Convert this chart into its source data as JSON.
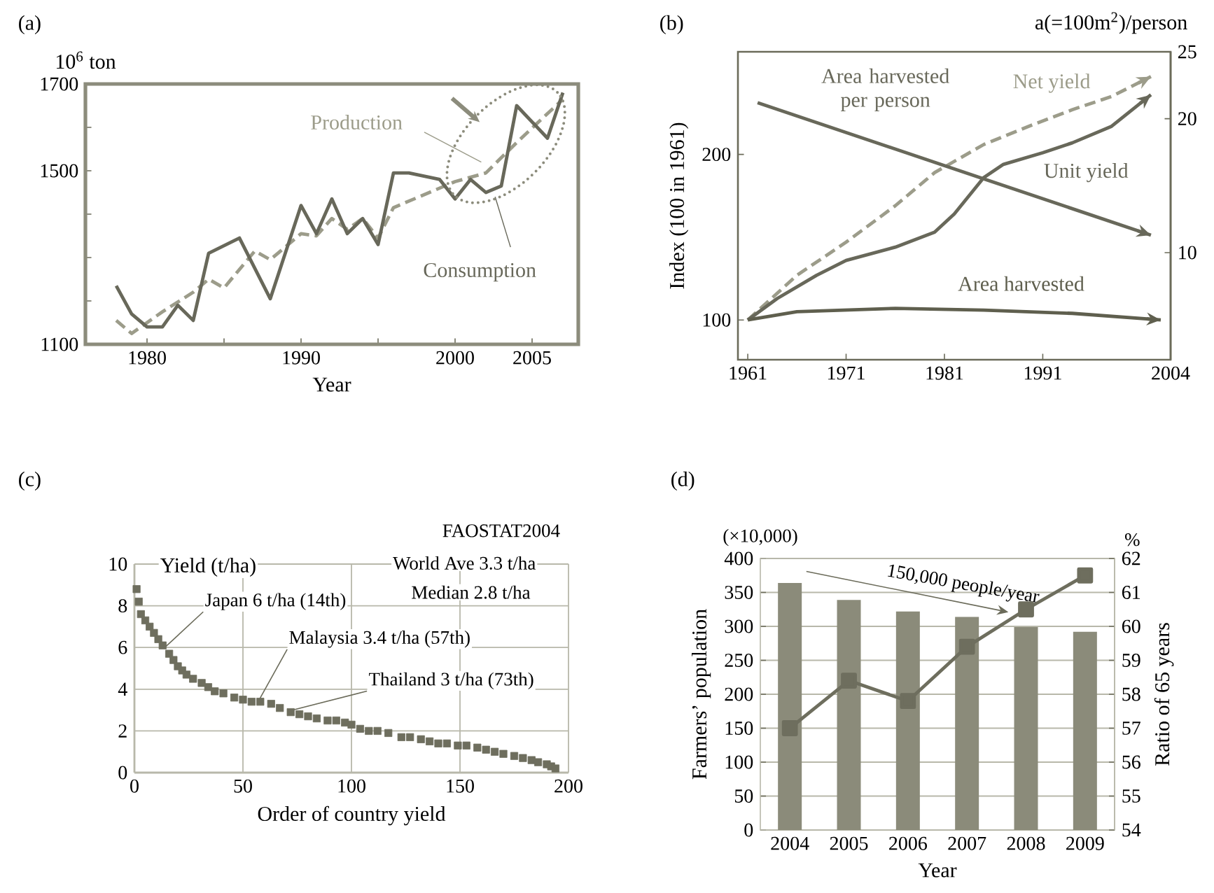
{
  "chart_data": [
    {
      "type": "line",
      "title": "(a)",
      "xlabel": "Year",
      "ylabel": "10$^{6}$ ton",
      "xlim": [
        1976,
        2008
      ],
      "xticks": [
        1980,
        {
          "value": 1985,
          "label": null
        },
        1990,
        {
          "value": 1995,
          "label": null
        },
        2000,
        2005
      ],
      "ylim": [
        1100,
        1700
      ],
      "yticks": [
        1100,
        {
          "value": 1200,
          "label": null
        },
        {
          "value": 1300,
          "label": null
        },
        {
          "value": 1400,
          "label": null
        },
        1500,
        {
          "value": 1600,
          "label": null
        },
        1700
      ],
      "series": [
        {
          "name": "Production",
          "color": "#9c9c8a",
          "line_style": "dashed",
          "x": [
            1978,
            1979,
            1981,
            1983,
            1984,
            1985,
            1987,
            1988,
            1990,
            1991,
            1992,
            1993,
            1994,
            1995,
            1996,
            2000,
            2002,
            2004,
            2007
          ],
          "values": [
            1155,
            1125,
            1175,
            1220,
            1250,
            1230,
            1315,
            1295,
            1355,
            1350,
            1390,
            1365,
            1390,
            1345,
            1415,
            1475,
            1495,
            1565,
            1665
          ]
        },
        {
          "name": "Consumption",
          "color": "#68685a",
          "line_style": "solid",
          "x": [
            1978,
            1979,
            1980,
            1981,
            1982,
            1983,
            1984,
            1986,
            1988,
            1990,
            1991,
            1992,
            1993,
            1994,
            1995,
            1996,
            1997,
            1999,
            2000,
            2001,
            2002,
            2003,
            2004,
            2006,
            2007
          ],
          "values": [
            1235,
            1170,
            1140,
            1140,
            1190,
            1155,
            1310,
            1345,
            1205,
            1420,
            1355,
            1435,
            1355,
            1390,
            1330,
            1495,
            1495,
            1480,
            1435,
            1480,
            1450,
            1465,
            1650,
            1575,
            1680
          ]
        }
      ]
    },
    {
      "type": "line",
      "title": "(b)",
      "ylabel": "Index (100 in 1961)",
      "y2label": "a(=100m$^{2}$)/person",
      "xlim": [
        1960,
        2004
      ],
      "xticks": [
        1961,
        1971,
        1981,
        1991,
        2004
      ],
      "ylim": [
        76,
        262
      ],
      "yticks": [
        100,
        200
      ],
      "y2lim": [
        2,
        25
      ],
      "y2ticks": [
        10,
        20,
        25
      ],
      "series": [
        {
          "name": "Area harvested per person",
          "color": "#68685a",
          "axis": "y2",
          "line_style": "solid",
          "x": [
            1962,
            2002
          ],
          "values": [
            21.2,
            11.3
          ]
        },
        {
          "name": "Net yield",
          "color": "#9c9c8a",
          "line_style": "dashed",
          "x": [
            1961,
            1966,
            1971,
            1976,
            1980,
            1985,
            1990,
            1994,
            1998,
            2002
          ],
          "values": [
            100,
            127,
            147,
            169,
            189,
            206,
            218,
            227,
            235,
            247
          ]
        },
        {
          "name": "Unit yield",
          "color": "#68685a",
          "line_style": "solid",
          "x": [
            1961,
            1964,
            1968,
            1971,
            1976,
            1980,
            1982,
            1985,
            1987,
            1991,
            1994,
            1998,
            2002
          ],
          "values": [
            100,
            113,
            127,
            136,
            144,
            153,
            164,
            186,
            194,
            201,
            207,
            217,
            236
          ]
        },
        {
          "name": "Area harvested",
          "color": "#5f5f4e",
          "line_style": "solid",
          "x": [
            1961,
            1966,
            1976,
            1985,
            1994,
            2003
          ],
          "values": [
            100,
            105,
            107,
            106,
            104,
            100
          ]
        }
      ]
    },
    {
      "type": "scatter",
      "title": "(c)",
      "xlabel": "Order of country yield",
      "ylabel": "Yield (t/ha)",
      "xlim": [
        0,
        200
      ],
      "xticks": [
        0,
        50,
        100,
        150,
        200
      ],
      "ylim": [
        0,
        10
      ],
      "yticks": [
        0,
        2,
        4,
        6,
        8,
        10
      ],
      "grid": true,
      "annotations": [
        "FAOSTAT2004",
        "World Ave 3.3 t/ha",
        "Median 2.8 t/ha",
        {
          "text": "Japan 6 t/ha (14th)",
          "x": 14,
          "y": 6
        },
        {
          "text": "Malaysia 3.4 t/ha (57th)",
          "x": 57,
          "y": 3.4
        },
        {
          "text": "Thailand 3 t/ha (73th)",
          "x": 73,
          "y": 3
        }
      ],
      "series": [
        {
          "color": "#6e6e5e",
          "marker": "square",
          "x": [
            1,
            2,
            3,
            5,
            7,
            9,
            11,
            13,
            16,
            18,
            20,
            22,
            24,
            27,
            31,
            34,
            37,
            41,
            46,
            50,
            54,
            58,
            63,
            67,
            72,
            76,
            80,
            84,
            89,
            93,
            97,
            100,
            104,
            108,
            112,
            117,
            123,
            127,
            132,
            136,
            140,
            144,
            149,
            153,
            158,
            162,
            166,
            170,
            175,
            179,
            183,
            186,
            190,
            192,
            194
          ],
          "values": [
            8.8,
            8.2,
            7.6,
            7.3,
            7.0,
            6.7,
            6.4,
            6.1,
            5.7,
            5.4,
            5.1,
            4.9,
            4.7,
            4.5,
            4.3,
            4.1,
            3.9,
            3.8,
            3.6,
            3.5,
            3.4,
            3.4,
            3.3,
            3.1,
            2.9,
            2.8,
            2.7,
            2.6,
            2.5,
            2.5,
            2.4,
            2.3,
            2.1,
            2.0,
            2.0,
            1.9,
            1.7,
            1.7,
            1.6,
            1.5,
            1.4,
            1.4,
            1.3,
            1.3,
            1.2,
            1.1,
            1.0,
            0.9,
            0.8,
            0.7,
            0.6,
            0.5,
            0.4,
            0.3,
            0.2
          ]
        }
      ]
    },
    {
      "type": "bar",
      "title": "(d)",
      "xlabel": "Year",
      "ylabel": "Farmers’ population",
      "y2label": "Ratio of 65 years",
      "categories": [
        "2004",
        "2005",
        "2006",
        "2007",
        "2008",
        "2009"
      ],
      "ylim": [
        0,
        400
      ],
      "yticks": [
        0,
        50,
        100,
        150,
        200,
        250,
        300,
        350,
        400
      ],
      "y2lim": [
        54,
        62
      ],
      "y2ticks": [
        54,
        55,
        56,
        57,
        58,
        59,
        60,
        61,
        62
      ],
      "grid": "y",
      "annotations": [
        "(×10,000)",
        "%",
        "150,000 people/year"
      ],
      "series": [
        {
          "type": "bar",
          "color": "#8b8b7a",
          "values": [
            364,
            339,
            322,
            314,
            299,
            292
          ]
        },
        {
          "type": "line",
          "axis": "y2",
          "color": "#6e6e5e",
          "marker": "square",
          "values": [
            57.0,
            58.4,
            57.8,
            59.4,
            60.5,
            61.5
          ]
        }
      ]
    }
  ]
}
